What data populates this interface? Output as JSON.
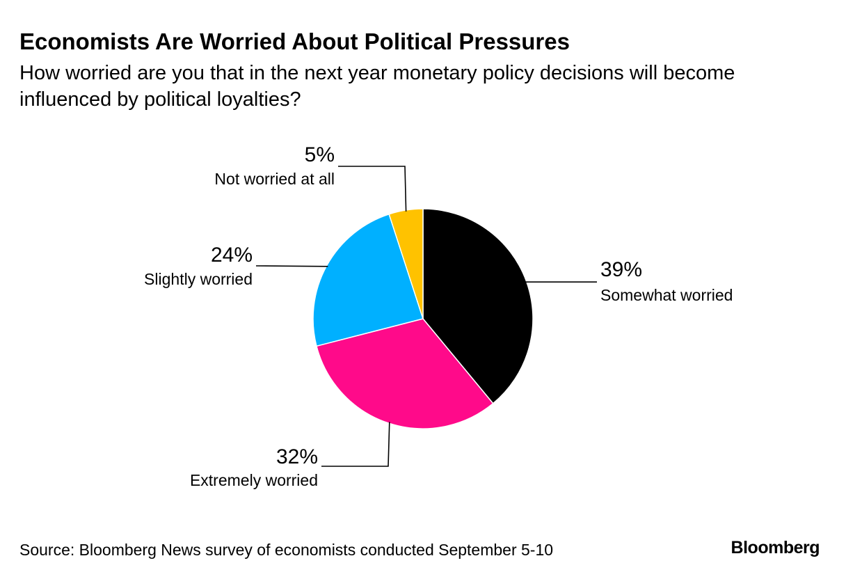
{
  "chart": {
    "title": "Economists Are Worried About Political Pressures",
    "subtitle": "How worried are you that in the next year monetary policy decisions will become influenced by political loyalties?",
    "source": "Source: Bloomberg News survey of economists conducted September 5-10",
    "brand": "Bloomberg"
  },
  "chart_data": {
    "type": "pie",
    "title": "Economists Are Worried About Political Pressures",
    "subtitle": "How worried are you that in the next year monetary policy decisions will become influenced by political loyalties?",
    "start": "12 o'clock, clockwise",
    "legend": "none (direct labels)",
    "slices": [
      {
        "label": "Somewhat worried",
        "value": 39,
        "value_label": "39%",
        "color": "#000000"
      },
      {
        "label": "Extremely worried",
        "value": 32,
        "value_label": "32%",
        "color": "#ff0a8a"
      },
      {
        "label": "Slightly worried",
        "value": 24,
        "value_label": "24%",
        "color": "#00b0ff"
      },
      {
        "label": "Not worried at all",
        "value": 5,
        "value_label": "5%",
        "color": "#ffc200"
      }
    ]
  }
}
